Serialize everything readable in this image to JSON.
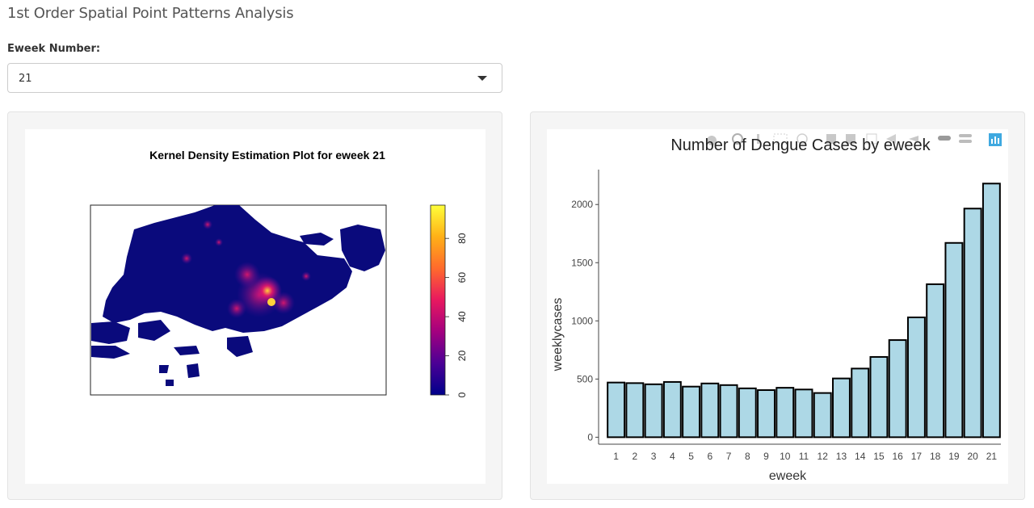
{
  "page": {
    "title": "1st Order Spatial Point Patterns Analysis"
  },
  "control": {
    "label": "Eweek Number:",
    "selected_value": "21"
  },
  "kde_panel": {
    "title": "Kernel Density Estimation Plot for eweek 21",
    "colorbar": {
      "ticks": [
        0,
        20,
        40,
        60,
        80
      ],
      "range": [
        0,
        97
      ],
      "colors": [
        "#00008b",
        "#4b0095",
        "#a3007f",
        "#e8185f",
        "#ff6a2c",
        "#ffb017",
        "#ffff3a"
      ]
    },
    "map_colors": {
      "background": "#0a0a7c",
      "hotspot": "#e8186b",
      "peak": "#ffd23a"
    }
  },
  "chart_data": {
    "type": "bar",
    "title": "Number of Dengue Cases by eweek",
    "xlabel": "eweek",
    "ylabel": "weeklycases",
    "categories": [
      "1",
      "2",
      "3",
      "4",
      "5",
      "6",
      "7",
      "8",
      "9",
      "10",
      "11",
      "12",
      "13",
      "14",
      "15",
      "16",
      "17",
      "18",
      "19",
      "20",
      "21"
    ],
    "values": [
      470,
      465,
      455,
      475,
      435,
      462,
      448,
      420,
      405,
      425,
      410,
      380,
      505,
      590,
      690,
      835,
      1030,
      1315,
      1670,
      1965,
      2180
    ],
    "yticks": [
      0,
      500,
      1000,
      1500,
      2000
    ],
    "ylim": [
      -60,
      2300
    ],
    "bar_color": "#add8e6",
    "bar_edge": "#000000"
  }
}
